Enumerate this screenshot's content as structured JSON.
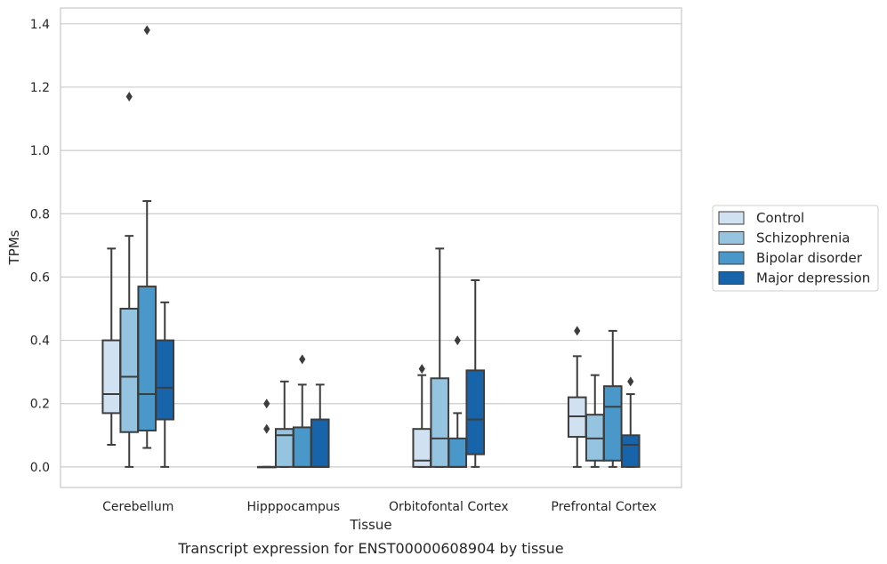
{
  "caption": "Transcript expression for ENST00000608904 by tissue",
  "chart_data": {
    "type": "box",
    "xlabel": "Tissue",
    "ylabel": "TPMs",
    "ylim": [
      -0.065,
      1.45
    ],
    "yticks": [
      0.0,
      0.2,
      0.4,
      0.6,
      0.8,
      1.0,
      1.2,
      1.4
    ],
    "ytick_labels": [
      "0.0",
      "0.2",
      "0.4",
      "0.6",
      "0.8",
      "1.0",
      "1.2",
      "1.4"
    ],
    "grid": "horizontal",
    "legend_position": "right",
    "categories": [
      "Cerebellum",
      "Hipppocampus",
      "Orbitofontal Cortex",
      "Prefrontal Cortex"
    ],
    "series": [
      {
        "name": "Control",
        "color": "#d0e1f2",
        "boxes": [
          {
            "whislo": 0.07,
            "q1": 0.17,
            "med": 0.23,
            "q3": 0.4,
            "whishi": 0.69,
            "fliers": []
          },
          {
            "whislo": 0.0,
            "q1": 0.0,
            "med": 0.0,
            "q3": 0.0,
            "whishi": 0.0,
            "fliers": [
              0.12,
              0.2
            ]
          },
          {
            "whislo": 0.0,
            "q1": 0.0,
            "med": 0.02,
            "q3": 0.12,
            "whishi": 0.29,
            "fliers": [
              0.31
            ]
          },
          {
            "whislo": 0.0,
            "q1": 0.095,
            "med": 0.16,
            "q3": 0.22,
            "whishi": 0.35,
            "fliers": [
              0.43
            ]
          }
        ]
      },
      {
        "name": "Schizophrenia",
        "color": "#94c4df",
        "boxes": [
          {
            "whislo": 0.0,
            "q1": 0.11,
            "med": 0.285,
            "q3": 0.5,
            "whishi": 0.73,
            "fliers": [
              1.17
            ]
          },
          {
            "whislo": 0.0,
            "q1": 0.0,
            "med": 0.1,
            "q3": 0.12,
            "whishi": 0.27,
            "fliers": []
          },
          {
            "whislo": 0.0,
            "q1": 0.0,
            "med": 0.09,
            "q3": 0.28,
            "whishi": 0.69,
            "fliers": []
          },
          {
            "whislo": 0.0,
            "q1": 0.02,
            "med": 0.09,
            "q3": 0.165,
            "whishi": 0.29,
            "fliers": []
          }
        ]
      },
      {
        "name": "Bipolar disorder",
        "color": "#4a98c9",
        "boxes": [
          {
            "whislo": 0.06,
            "q1": 0.115,
            "med": 0.23,
            "q3": 0.57,
            "whishi": 0.84,
            "fliers": [
              1.38
            ]
          },
          {
            "whislo": 0.0,
            "q1": 0.0,
            "med": 0.0,
            "q3": 0.125,
            "whishi": 0.26,
            "fliers": [
              0.34
            ]
          },
          {
            "whislo": 0.0,
            "q1": 0.0,
            "med": 0.0,
            "q3": 0.09,
            "whishi": 0.17,
            "fliers": [
              0.4
            ]
          },
          {
            "whislo": 0.0,
            "q1": 0.02,
            "med": 0.19,
            "q3": 0.255,
            "whishi": 0.43,
            "fliers": []
          }
        ]
      },
      {
        "name": "Major depression",
        "color": "#1764ab",
        "boxes": [
          {
            "whislo": 0.0,
            "q1": 0.15,
            "med": 0.25,
            "q3": 0.4,
            "whishi": 0.52,
            "fliers": []
          },
          {
            "whislo": 0.0,
            "q1": 0.0,
            "med": 0.0,
            "q3": 0.15,
            "whishi": 0.26,
            "fliers": []
          },
          {
            "whislo": 0.0,
            "q1": 0.04,
            "med": 0.15,
            "q3": 0.305,
            "whishi": 0.59,
            "fliers": []
          },
          {
            "whislo": 0.0,
            "q1": 0.0,
            "med": 0.07,
            "q3": 0.1,
            "whishi": 0.23,
            "fliers": [
              0.27
            ]
          }
        ]
      }
    ]
  }
}
